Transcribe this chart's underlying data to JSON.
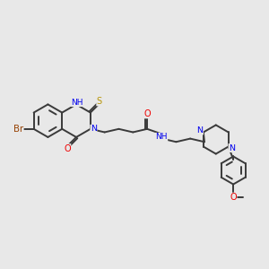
{
  "bg_color": "#e8e8e8",
  "bond_color": "#3a3a3a",
  "bond_width": 1.4,
  "atom_colors": {
    "N": "#0000ee",
    "O": "#ee0000",
    "S": "#b8960a",
    "Br": "#964000",
    "NH": "#0000ee"
  },
  "font_size": 6.8,
  "fig_size": [
    3.0,
    3.0
  ],
  "dpi": 100
}
